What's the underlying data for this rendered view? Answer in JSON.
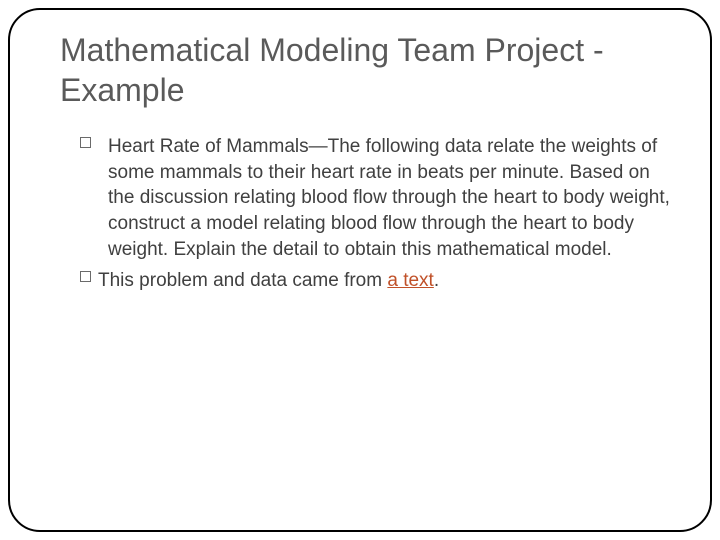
{
  "slide": {
    "title": "Mathematical Modeling Team Project - Example",
    "title_color": "#5a5a5a",
    "title_fontsize": 32,
    "body_color": "#404040",
    "body_fontsize": 19,
    "link_color": "#c05028",
    "border_color": "#000000",
    "border_radius": 32,
    "background_color": "#ffffff",
    "bullets": [
      {
        "indent": 1,
        "text": "Heart Rate of Mammals—The following data relate the weights of some mammals to their heart rate in beats per minute. Based on the discussion relating blood flow through the heart to body weight, construct a model relating blood flow through the heart to body weight. Explain the detail to obtain this mathematical model.",
        "has_link": false
      },
      {
        "indent": 0,
        "text_prefix": "This problem and data came from ",
        "link_text": "a text",
        "text_suffix": ".",
        "has_link": true
      }
    ]
  }
}
